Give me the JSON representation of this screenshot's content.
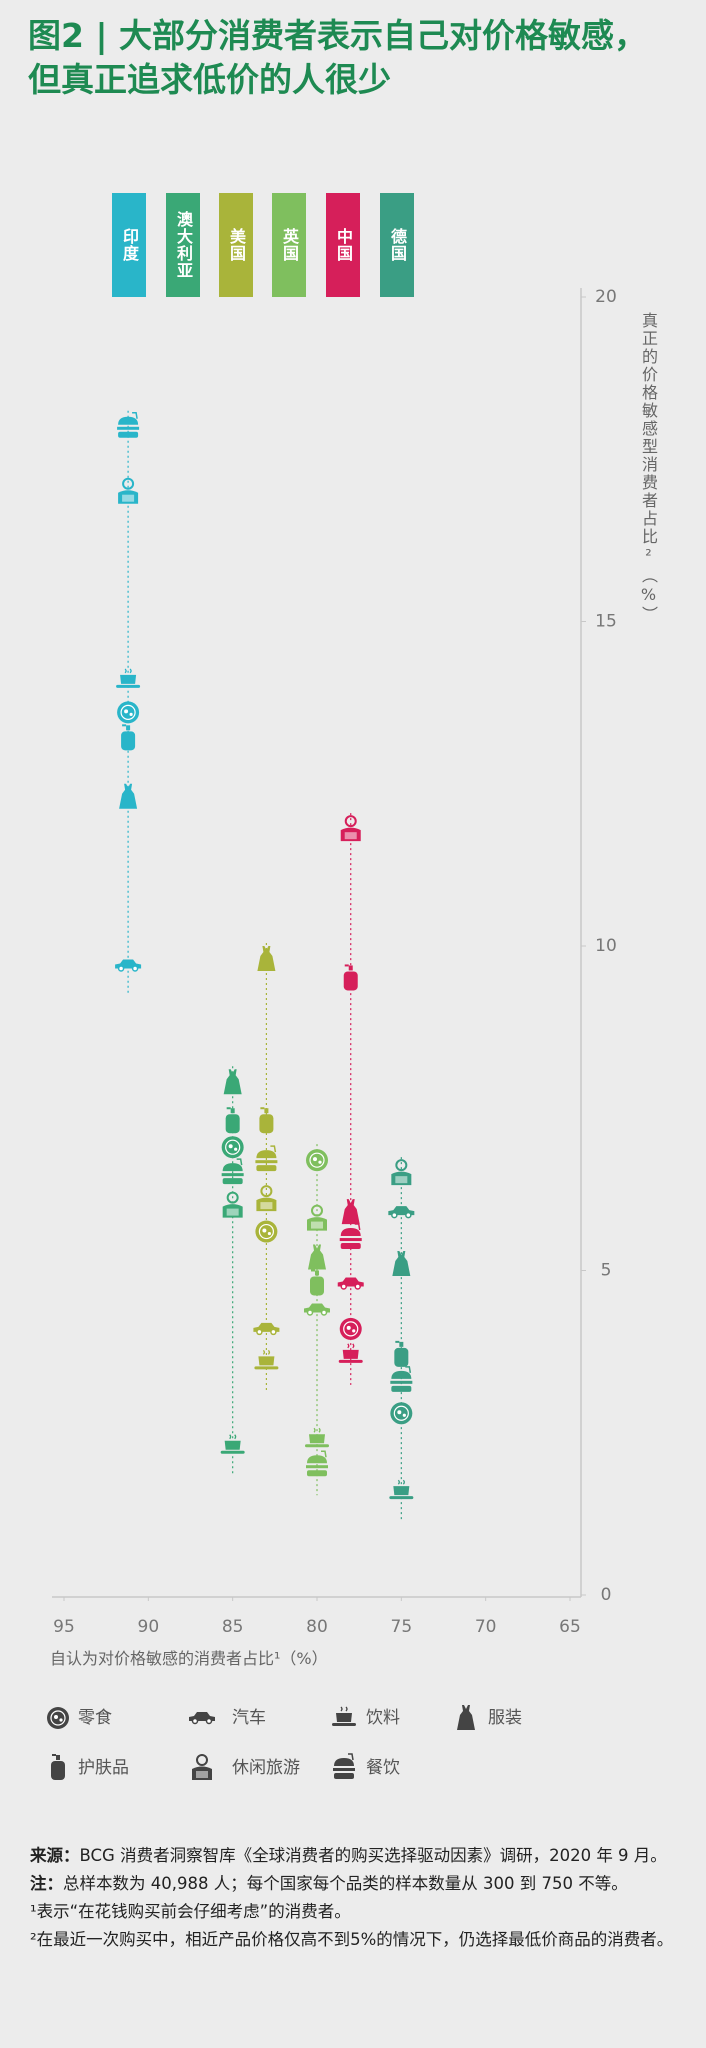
{
  "chart_data": {
    "type": "scatter",
    "title": "图2 | 大部分消费者表示自己对价格敏感，但真正追求低价的人很少",
    "x_label": "自认为对价格敏感的消费者占比¹（%）",
    "y_label": "真正的价格敏感型消费者占比²（%）",
    "xlim": [
      95,
      65
    ],
    "xticks": [
      95,
      90,
      85,
      80,
      75,
      70,
      65
    ],
    "ylim": [
      0,
      20
    ],
    "yticks": [
      0,
      5,
      10,
      15,
      20
    ],
    "categories": [
      "零食",
      "汽车",
      "饮料",
      "服装",
      "护肤品",
      "休闲旅游",
      "餐饮"
    ],
    "series": [
      {
        "name": "印度",
        "color": "#29b5c9",
        "x": 91.2,
        "values": [
          13.6,
          9.7,
          14.1,
          12.3,
          13.2,
          17.0,
          18.0
        ]
      },
      {
        "name": "澳大利亚",
        "color": "#3aa876",
        "x": 85,
        "values": [
          6.9,
          null,
          2.3,
          7.9,
          7.3,
          6.0,
          6.5
        ]
      },
      {
        "name": "美国",
        "color": "#a9b43a",
        "x": 83,
        "values": [
          5.6,
          4.1,
          3.6,
          9.8,
          7.3,
          6.1,
          6.7
        ]
      },
      {
        "name": "英国",
        "color": "#7fbf5e",
        "x": 80,
        "values": [
          6.7,
          4.4,
          2.4,
          5.2,
          4.8,
          5.8,
          2.0
        ]
      },
      {
        "name": "中国",
        "color": "#d61f5a",
        "x": 78,
        "values": [
          4.1,
          4.8,
          3.7,
          5.9,
          9.5,
          11.8,
          5.5
        ]
      },
      {
        "name": "德国",
        "color": "#3a9e84",
        "x": 75,
        "values": [
          2.8,
          5.9,
          1.6,
          5.1,
          3.7,
          6.5,
          3.3
        ]
      }
    ],
    "source": {
      "label": "来源：",
      "text": "BCG 消费者洞察智库《全球消费者的购买选择驱动因素》调研，2020 年 9 月。"
    },
    "note": {
      "label": "注：",
      "text": "总样本数为 40,988 人；每个国家每个品类的样本数量从 300 到 750 不等。"
    },
    "footnotes": [
      "¹表示“在花钱购买前会仔细考虑”的消费者。",
      "²在最近一次购买中，相近产品价格仅高不到5%的情况下，仍选择最低价商品的消费者。"
    ]
  }
}
